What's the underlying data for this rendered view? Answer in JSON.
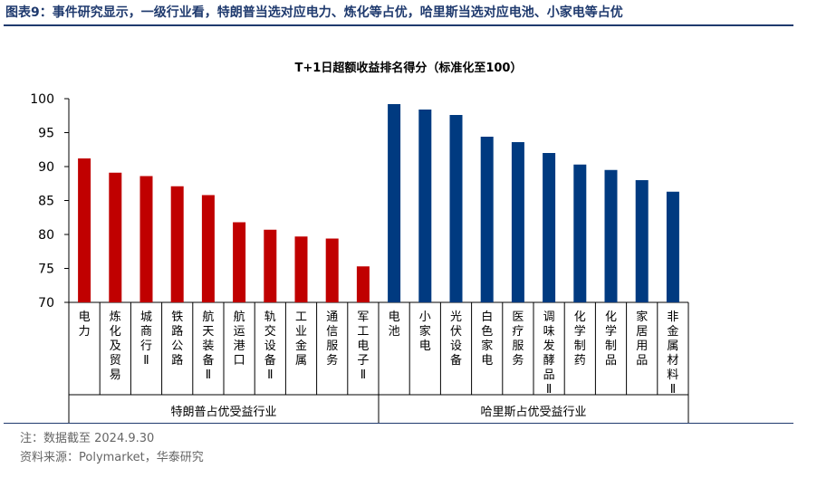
{
  "header": {
    "title": "图表9：事件研究显示，一级行业看，特朗普当选对应电力、炼化等占优，哈里斯当选对应电池、小家电等占优"
  },
  "chart_data": {
    "type": "bar",
    "title": "T+1日超额收益排名得分（标准化至100）",
    "ylim": [
      70,
      100
    ],
    "yticks": [
      "70",
      "75",
      "80",
      "85",
      "90",
      "95",
      "100"
    ],
    "categories": [
      "电力",
      "炼化及贸易",
      "城商行Ⅱ",
      "铁路公路",
      "航天装备Ⅱ",
      "航运港口",
      "轨交设备Ⅱ",
      "工业金属",
      "通信服务",
      "军工电子Ⅱ",
      "电池",
      "小家电",
      "光伏设备",
      "白色家电",
      "医疗服务",
      "调味发酵品Ⅱ",
      "化学制药",
      "化学制品",
      "家居用品",
      "非金属材料Ⅱ"
    ],
    "values": [
      91.2,
      89.1,
      88.6,
      87.1,
      85.8,
      81.8,
      80.7,
      79.7,
      79.4,
      75.3,
      99.2,
      98.4,
      97.6,
      94.4,
      93.6,
      92.0,
      90.3,
      89.5,
      88.0,
      86.3
    ],
    "groups": [
      {
        "name": "特朗普占优受益行业",
        "start": 0,
        "end": 9,
        "color": "#c00000"
      },
      {
        "name": "哈里斯占优受益行业",
        "start": 10,
        "end": 19,
        "color": "#003a80"
      }
    ],
    "legend": "none",
    "grid": false
  },
  "footer": {
    "note": "注：数据截至 2024.9.30",
    "source": "资料来源：Polymarket，华泰研究"
  }
}
